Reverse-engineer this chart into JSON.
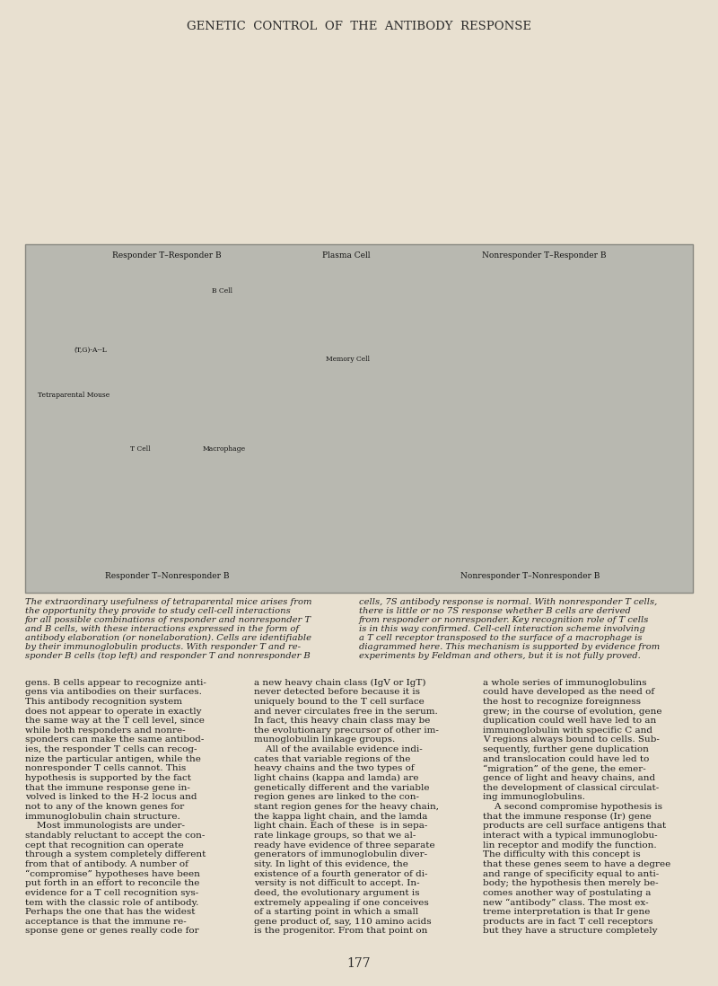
{
  "page_bg": "#e8e0d0",
  "header_text": "GENETIC  CONTROL  OF  THE  ANTIBODY  RESPONSE",
  "header_color": "#2a2a2a",
  "header_fontsize": 9.5,
  "diagram_bg": "#b8b8b0",
  "diagram_border": "#888880",
  "caption_fontsize": 7.2,
  "caption_color": "#222222",
  "caption_left": "The extraordinary usefulness of tetraparental mice arises from\nthe opportunity they provide to study cell-cell interactions\nfor all possible combinations of responder and nonresponder T\nand B cells, with these interactions expressed in the form of\nantibody elaboration (or nonelaboration). Cells are identifiable\nby their immunoglobulin products. With responder T and re-\nsponder B cells (top left) and responder T and nonresponder B",
  "caption_right": "cells, 7S antibody response is normal. With nonresponder T cells,\nthere is little or no 7S response whether B cells are derived\nfrom responder or nonresponder. Key recognition role of T cells\nis in this way confirmed. Cell-cell interaction scheme involving\na T cell receptor transposed to the surface of a macrophage is\ndiagrammed here. This mechanism is supported by evidence from\nexperiments by Feldman and others, but it is not fully proved.",
  "body_col1": "gens. B cells appear to recognize anti-\ngens via antibodies on their surfaces.\nThis antibody recognition system\ndoes not appear to operate in exactly\nthe same way at the T cell level, since\nwhile both responders and nonre-\nsponders can make the same antibod-\nies, the responder T cells can recog-\nnize the particular antigen, while the\nnonresponder T cells cannot. This\nhypothesis is supported by the fact\nthat the immune response gene in-\nvolved is linked to the H-2 locus and\nnot to any of the known genes for\nimmunoglobulin chain structure.\n    Most immunologists are under-\nstandably reluctant to accept the con-\ncept that recognition can operate\nthrough a system completely different\nfrom that of antibody. A number of\n“compromise” hypotheses have been\nput forth in an effort to reconcile the\nevidence for a T cell recognition sys-\ntem with the classic role of antibody.\nPerhaps the one that has the widest\nacceptance is that the immune re-\nsponse gene or genes really code for",
  "body_col2": "a new heavy chain class (IgV or IgT)\nnever detected before because it is\nuniquely bound to the T cell surface\nand never circulates free in the serum.\nIn fact, this heavy chain class may be\nthe evolutionary precursor of other im-\nmunoglobulin linkage groups.\n    All of the available evidence indi-\ncates that variable regions of the\nheavy chains and the two types of\nlight chains (kappa and lamda) are\ngenetically different and the variable\nregion genes are linked to the con-\nstant region genes for the heavy chain,\nthe kappa light chain, and the lamda\nlight chain. Each of these  is in sepa-\nrate linkage groups, so that we al-\nready have evidence of three separate\ngenerators of immunoglobulin diver-\nsity. In light of this evidence, the\nexistence of a fourth generator of di-\nversity is not difficult to accept. In-\ndeed, the evolutionary argument is\nextremely appealing if one conceives\nof a starting point in which a small\ngene product of, say, 110 amino acids\nis the progenitor. From that point on",
  "body_col3": "a whole series of immunoglobulins\ncould have developed as the need of\nthe host to recognize foreignness\ngrew; in the course of evolution, gene\nduplication could well have led to an\nimmunoglobulin with specific C and\nV regions always bound to cells. Sub-\nsequently, further gene duplication\nand translocation could have led to\n“migration” of the gene, the emer-\ngence of light and heavy chains, and\nthe development of classical circulat-\ning immunoglobulins.\n    A second compromise hypothesis is\nthat the immune response (Ir) gene\nproducts are cell surface antigens that\ninteract with a typical immunoglobu-\nlin receptor and modify the function.\nThe difficulty with this concept is\nthat these genes seem to have a degree\nand range of specificity equal to anti-\nbody; the hypothesis then merely be-\ncomes another way of postulating a\nnew “antibody” class. The most ex-\ntreme interpretation is that Ir gene\nproducts are in fact T cell receptors\nbut they have a structure completely",
  "body_fontsize": 7.5,
  "body_color": "#1a1a1a",
  "page_number": "177",
  "page_num_fontsize": 10,
  "diagram_labels": {
    "top_left_title": "Responder T–Responder B",
    "top_right_title": "Nonresponder T–Responder B",
    "bottom_left_title": "Responder T–Nonresponder B",
    "bottom_right_title": "Nonresponder T–Nonresponder B",
    "injection_label": "(T,G)-A--L",
    "mouse_label": "Tetraparental Mouse",
    "tcell_label": "T Cell",
    "macro_label": "Macrophage",
    "plasma_label": "Plasma Cell",
    "bcell_label": "B Cell",
    "memory_label": "Memory Cell"
  }
}
